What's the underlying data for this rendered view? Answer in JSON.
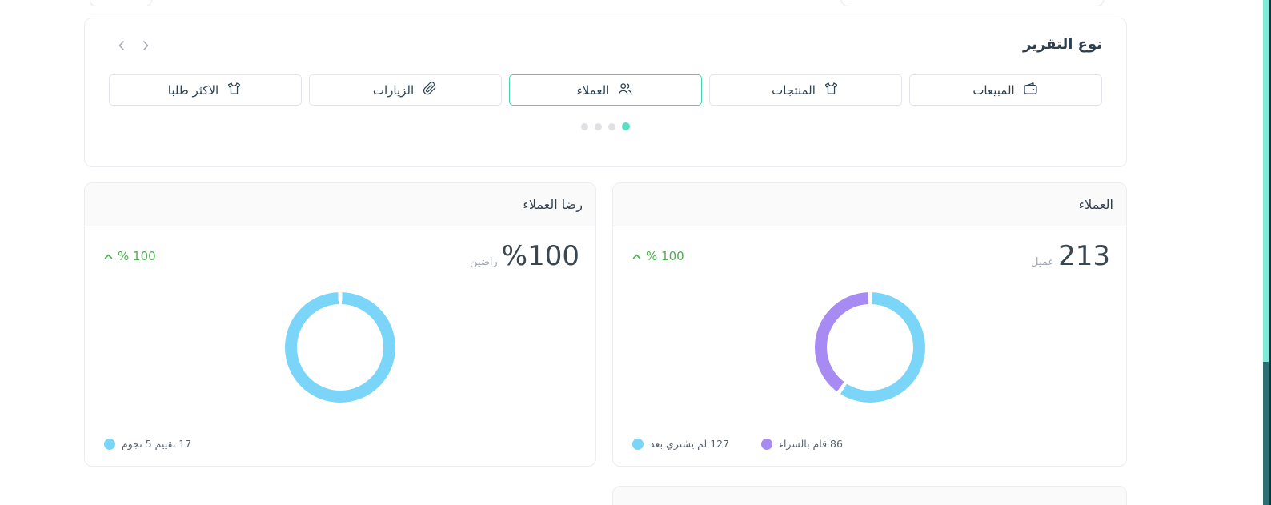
{
  "report_type_card": {
    "title": "نوع التقرير",
    "tabs": [
      {
        "label": "المبيعات",
        "icon": "wallet-icon",
        "selected": false
      },
      {
        "label": "المنتجات",
        "icon": "tshirt-icon",
        "selected": false
      },
      {
        "label": "العملاء",
        "icon": "users-icon",
        "selected": true
      },
      {
        "label": "الزيارات",
        "icon": "paperclip-icon",
        "selected": false
      },
      {
        "label": "الاكثر طلبا",
        "icon": "tshirt-icon",
        "selected": false
      }
    ],
    "dots": [
      {
        "active": false
      },
      {
        "active": false
      },
      {
        "active": false
      },
      {
        "active": true
      }
    ]
  },
  "customers_card": {
    "title": "العملاء",
    "value": "213",
    "value_unit": "عميل",
    "trend": {
      "value": "100 %",
      "direction": "up",
      "color": "#4caf50"
    },
    "legend": [
      {
        "label": "86 قام بالشراء",
        "color": "#a78bf2"
      },
      {
        "label": "127 لم يشتري بعد",
        "color": "#7bd5f8"
      }
    ]
  },
  "satisfaction_card": {
    "title": "رضا العملاء",
    "value": "100",
    "value_prefix": "%",
    "value_unit": "راضين",
    "trend": {
      "value": "100 %",
      "direction": "up",
      "color": "#4caf50"
    },
    "legend": [
      {
        "label": "17 تقييم 5 نجوم",
        "color": "#7bd5f8"
      }
    ]
  },
  "chart_data": [
    {
      "type": "pie",
      "variant": "donut",
      "title": "العملاء",
      "total": 213,
      "series": [
        {
          "name": "لم يشتري بعد",
          "value": 127,
          "color": "#7bd5f8"
        },
        {
          "name": "قام بالشراء",
          "value": 86,
          "color": "#a78bf2"
        }
      ],
      "start_angle": "top",
      "direction": "clockwise",
      "legend_position": "bottom-left"
    },
    {
      "type": "pie",
      "variant": "donut",
      "title": "رضا العملاء",
      "percent_label": "%100 راضين",
      "series": [
        {
          "name": "تقييم 5 نجوم",
          "value": 17,
          "color": "#7bd5f8"
        }
      ],
      "start_angle": "top",
      "direction": "clockwise",
      "legend_position": "bottom-left"
    }
  ],
  "scrollbar": {
    "thumb_color": "#7ee9d6",
    "track_color": "#2e6f76",
    "edge_color": "#0a3a40"
  }
}
